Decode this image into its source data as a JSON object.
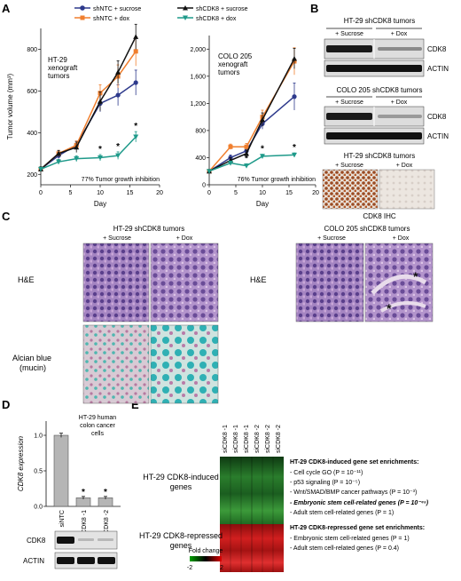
{
  "panels": {
    "A": "A",
    "B": "B",
    "C": "C",
    "D": "D",
    "E": "E"
  },
  "legend": [
    "shNTC + sucrose",
    "shNTC + dox",
    "shCDK8 + sucrose",
    "shCDK8 + dox"
  ],
  "colors": {
    "shNTC_sucrose": "#2e3a8c",
    "shNTC_dox": "#f07f2e",
    "shCDK8_sucrose": "#111111",
    "shCDK8_dox": "#1f9a8a"
  },
  "chart_data": [
    {
      "type": "line",
      "title": "HT-29 xenograft tumors",
      "xlabel": "Day",
      "ylabel": "Tumor volume (mm³)",
      "xlim": [
        0,
        20
      ],
      "ylim": [
        150,
        900
      ],
      "xticks": [
        0,
        5,
        10,
        15,
        20
      ],
      "yticks": [
        200,
        400,
        600,
        800
      ],
      "x": [
        0,
        3,
        6,
        10,
        13,
        16
      ],
      "series": [
        {
          "name": "shNTC + sucrose",
          "values": [
            225,
            290,
            340,
            540,
            580,
            640
          ],
          "err": [
            12,
            15,
            20,
            40,
            50,
            60
          ]
        },
        {
          "name": "shNTC + dox",
          "values": [
            225,
            300,
            340,
            590,
            670,
            790
          ],
          "err": [
            12,
            15,
            20,
            40,
            55,
            70
          ]
        },
        {
          "name": "shCDK8 + sucrose",
          "values": [
            225,
            300,
            330,
            550,
            690,
            860
          ],
          "err": [
            12,
            15,
            25,
            45,
            55,
            60
          ]
        },
        {
          "name": "shCDK8 + dox",
          "values": [
            225,
            260,
            275,
            280,
            290,
            380
          ],
          "err": [
            10,
            12,
            14,
            15,
            18,
            25
          ]
        }
      ],
      "significance_x": [
        10,
        13,
        16
      ],
      "annotation": "77% Tumor growth inhibition"
    },
    {
      "type": "line",
      "title": "COLO 205 xenograft tumors",
      "xlabel": "Day",
      "ylabel": "",
      "xlim": [
        0,
        20
      ],
      "ylim": [
        0,
        2200
      ],
      "xticks": [
        0,
        5,
        10,
        15,
        20
      ],
      "yticks": [
        0,
        400,
        800,
        1200,
        1600,
        2000
      ],
      "x": [
        0,
        4,
        7,
        10,
        16
      ],
      "series": [
        {
          "name": "shNTC + sucrose",
          "values": [
            200,
            400,
            500,
            900,
            1300
          ],
          "err": [
            15,
            40,
            60,
            80,
            200
          ]
        },
        {
          "name": "shNTC + dox",
          "values": [
            200,
            560,
            560,
            1000,
            1820
          ],
          "err": [
            15,
            40,
            50,
            100,
            200
          ]
        },
        {
          "name": "shCDK8 + sucrose",
          "values": [
            200,
            360,
            460,
            960,
            1860
          ],
          "err": [
            15,
            40,
            50,
            100,
            150
          ]
        },
        {
          "name": "shCDK8 + dox",
          "values": [
            200,
            320,
            280,
            420,
            440
          ],
          "err": [
            15,
            30,
            30,
            30,
            30
          ]
        }
      ],
      "significance_x": [
        7,
        10,
        16
      ],
      "annotation": "76% Tumor growth inhibition"
    },
    {
      "type": "bar",
      "title": "HT-29 human colon cancer cells",
      "ylabel": "CDK8 expression",
      "categories": [
        "siNTC",
        "siCDK8 -1",
        "siCDK8 -2"
      ],
      "values": [
        1.0,
        0.12,
        0.12
      ],
      "err": [
        0.03,
        0.02,
        0.02
      ],
      "ylim": [
        0,
        1.2
      ],
      "yticks": [
        0,
        0.5,
        1.0
      ],
      "significance": [
        "",
        "*",
        "*"
      ]
    }
  ],
  "panelB": {
    "blot1": {
      "title": "HT-29 shCDK8 tumors",
      "groups": [
        "+ Sucrose",
        "+ Dox"
      ],
      "rows": [
        "CDK8",
        "ACTIN"
      ]
    },
    "blot2": {
      "title": "COLO 205 shCDK8 tumors",
      "groups": [
        "+ Sucrose",
        "+ Dox"
      ],
      "rows": [
        "CDK8",
        "ACTIN"
      ]
    },
    "ihc": {
      "title": "HT-29 shCDK8 tumors",
      "groups": [
        "+ Sucrose",
        "+ Dox"
      ],
      "caption": "CDK8 IHC"
    }
  },
  "panelC": {
    "left_title": "HT-29 shCDK8 tumors",
    "right_title": "COLO 205 shCDK8 tumors",
    "groups": [
      "+ Sucrose",
      "+ Dox"
    ],
    "row_he": "H&E",
    "row_alcian_1": "Alcian blue",
    "row_alcian_2": "(mucin)"
  },
  "panelD": {
    "blot_rows": [
      "CDK8",
      "ACTIN"
    ]
  },
  "panelE": {
    "columns": [
      "siCDK8 -1",
      "siCDK8 -1",
      "siCDK8 -1",
      "siCDK8 -2",
      "siCDK8 -2",
      "siCDK8 -2"
    ],
    "induced_label_1": "HT-29 CDK8-induced",
    "induced_label_2": "genes",
    "repressed_label_1": "HT-29 CDK8-repressed",
    "repressed_label_2": "genes",
    "induced_header": "HT-29 CDK8-induced gene set enrichments:",
    "induced_items": [
      "- Cell cycle GO (P = 10⁻¹¹)",
      "- p53 signaling (P = 10⁻⁵)",
      "- Wnt/SMAD/BMP cancer pathways (P = 10⁻³)",
      "- Embryonic stem cell-related genes (P = 10⁻⁴⁵)",
      "- Adult stem cell-related genes (P = 1)"
    ],
    "repressed_header": "HT-29 CDK8-repressed gene set enrichments:",
    "repressed_items": [
      "- Embryonic stem cell-related genes (P = 1)",
      "- Adult stem cell-related genes (P = 0.4)"
    ],
    "colorbar_title": "Fold change",
    "colorbar_min": "-2",
    "colorbar_max": "2"
  }
}
